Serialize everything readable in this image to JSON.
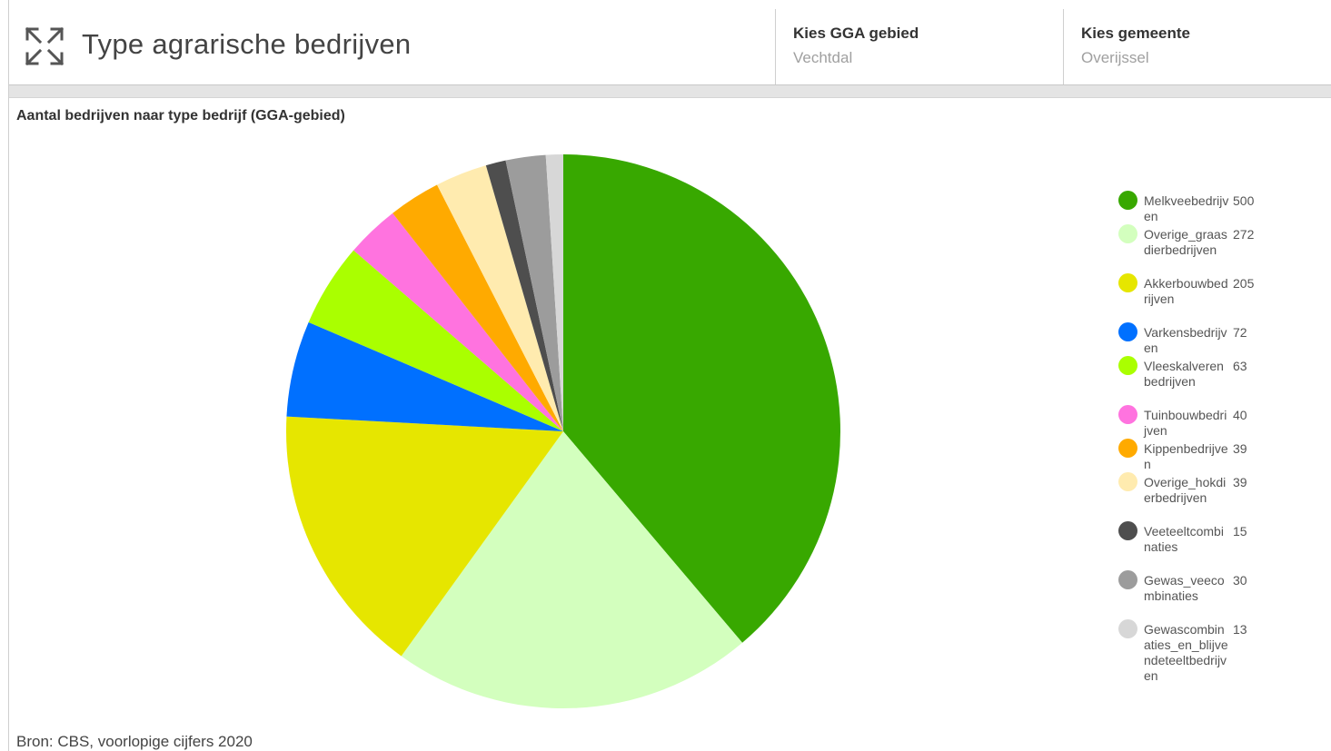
{
  "header": {
    "title": "Type agrarische bedrijven",
    "expand_icon": "expand-arrows-icon",
    "selectors": [
      {
        "label": "Kies GGA gebied",
        "value": "Vechtdal"
      },
      {
        "label": "Kies gemeente",
        "value": "Overijssel"
      }
    ]
  },
  "chart_data": {
    "type": "pie",
    "title": "Aantal bedrijven naar type bedrijf (GGA-gebied)",
    "start": "12 o'clock, clockwise",
    "legend_position": "right",
    "slices": [
      {
        "name": "Melkveebedrijven",
        "value": 500,
        "color": "#38a800"
      },
      {
        "name": "Overige_graasdierbedrijven",
        "value": 272,
        "color": "#d3ffbe"
      },
      {
        "name": "Akkerbouwbedrijven",
        "value": 205,
        "color": "#e6e600"
      },
      {
        "name": "Varkensbedrijven",
        "value": 72,
        "color": "#0070ff"
      },
      {
        "name": "Vleeskalverenbedrijven",
        "value": 63,
        "color": "#aaff00"
      },
      {
        "name": "Tuinbouwbedrijven",
        "value": 40,
        "color": "#ff73df"
      },
      {
        "name": "Kippenbedrijven",
        "value": 39,
        "color": "#ffaa00"
      },
      {
        "name": "Overige_hokdierbedrijven",
        "value": 39,
        "color": "#ffebaf"
      },
      {
        "name": "Veeteeltcombinaties",
        "value": 15,
        "color": "#4e4e4e"
      },
      {
        "name": "Gewas_veecombinaties",
        "value": 30,
        "color": "#9c9c9c"
      },
      {
        "name": "Gewascombinaties_en_blijvendeteeltbedrijven",
        "value": 13,
        "color": "#d7d7d7"
      }
    ]
  },
  "footer": {
    "source": "Bron: CBS, voorlopige cijfers 2020"
  }
}
